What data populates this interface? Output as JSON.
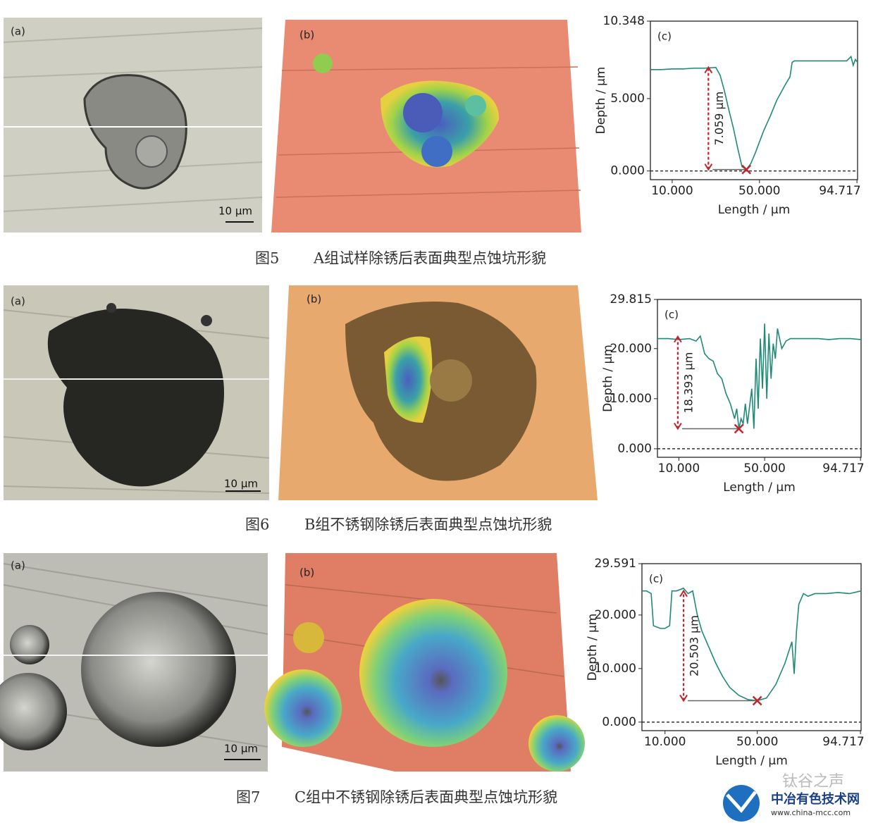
{
  "figures": [
    {
      "caption_number": "图5",
      "caption": "A组试样除锈后表面典型点蚀坑形貌",
      "panel_a": "(a)",
      "panel_b": "(b)",
      "scale_bar": "10 μm"
    },
    {
      "caption_number": "图6",
      "caption": "B组不锈钢除锈后表面典型点蚀坑形貌",
      "panel_a": "(a)",
      "panel_b": "(b)",
      "scale_bar": "10 μm"
    },
    {
      "caption_number": "图7",
      "caption": "C组中不锈钢除锈后表面典型点蚀坑形貌",
      "panel_a": "(a)",
      "panel_b": "(b)",
      "scale_bar": "10 μm"
    }
  ],
  "chart_data": [
    {
      "type": "line",
      "panel_label": "(c)",
      "xlabel": "Length / μm",
      "ylabel": "Depth / μm",
      "x": [
        0,
        5,
        10,
        15,
        20,
        25,
        30,
        32,
        34,
        36,
        38,
        40,
        42,
        44,
        46,
        48,
        50,
        52,
        55,
        58,
        62,
        64,
        65,
        66,
        70,
        75,
        80,
        85,
        90,
        92,
        93,
        94,
        95
      ],
      "series": [
        {
          "color": "#1f8a78",
          "values": [
            7.0,
            7.0,
            7.05,
            7.05,
            7.1,
            7.1,
            7.15,
            6.6,
            5.5,
            4.2,
            3.0,
            1.6,
            0.3,
            0.1,
            0.5,
            1.2,
            2.0,
            2.8,
            3.8,
            4.9,
            6.0,
            6.5,
            7.5,
            7.6,
            7.6,
            7.6,
            7.6,
            7.6,
            7.6,
            7.9,
            7.3,
            7.7,
            7.5
          ]
        }
      ],
      "xlim": [
        0,
        95
      ],
      "ylim": [
        -0.6,
        10.348
      ],
      "xticks": [
        {
          "value": 10,
          "label": "10.000"
        },
        {
          "value": 50,
          "label": "50.000"
        },
        {
          "value": 94.717,
          "label": "94.717"
        }
      ],
      "yticks": [
        {
          "value": 0,
          "label": "0.000"
        },
        {
          "value": 5,
          "label": "5.000"
        },
        {
          "value": 10.348,
          "label": "10.348"
        }
      ],
      "annotation": {
        "value": 7.059,
        "label": "7.059 μm"
      }
    },
    {
      "type": "line",
      "panel_label": "(c)",
      "xlabel": "Length / μm",
      "ylabel": "Depth / μm",
      "x": [
        0,
        5,
        10,
        15,
        18,
        20,
        22,
        24,
        26,
        28,
        30,
        32,
        34,
        36,
        37,
        38,
        39,
        40,
        41,
        42,
        44,
        45,
        46,
        47,
        48,
        49,
        50,
        51,
        52,
        53,
        54,
        55,
        56,
        58,
        60,
        62,
        65,
        70,
        75,
        80,
        85,
        90,
        95
      ],
      "series": [
        {
          "color": "#1f8a78",
          "values": [
            22,
            22,
            21.8,
            22,
            21.5,
            22.5,
            19,
            18,
            17.5,
            15,
            14,
            11,
            9,
            6,
            8,
            4,
            6,
            5,
            9,
            5,
            12,
            4,
            18,
            8,
            22,
            12,
            25,
            10,
            23,
            14,
            21,
            18,
            24,
            20,
            21.5,
            22,
            22,
            22,
            22,
            21.8,
            22,
            22,
            21.8
          ]
        }
      ],
      "xlim": [
        0,
        95
      ],
      "ylim": [
        -1.7,
        29.815
      ],
      "xticks": [
        {
          "value": 10,
          "label": "10.000"
        },
        {
          "value": 50,
          "label": "50.000"
        },
        {
          "value": 94.717,
          "label": "94.717"
        }
      ],
      "yticks": [
        {
          "value": 0,
          "label": "0.000"
        },
        {
          "value": 10,
          "label": "10.000"
        },
        {
          "value": 20,
          "label": "20.000"
        },
        {
          "value": 29.815,
          "label": "29.815"
        }
      ],
      "annotation": {
        "value": 18.393,
        "label": "18.393 μm"
      }
    },
    {
      "type": "line",
      "panel_label": "(c)",
      "xlabel": "Length / μm",
      "ylabel": "Depth / μm",
      "x": [
        0,
        2,
        4,
        5,
        8,
        10,
        12,
        13,
        15,
        18,
        20,
        22,
        24,
        26,
        28,
        30,
        32,
        35,
        38,
        42,
        46,
        50,
        54,
        58,
        62,
        65,
        66,
        67,
        68,
        70,
        72,
        75,
        80,
        85,
        90,
        95
      ],
      "series": [
        {
          "color": "#1f8a78",
          "values": [
            24.5,
            24.5,
            24,
            18,
            17.5,
            17.5,
            18,
            24.5,
            24.5,
            25,
            24,
            24.5,
            20,
            17,
            15,
            13,
            11,
            8.5,
            6.5,
            5,
            4.2,
            4,
            4.5,
            7,
            11,
            15,
            9,
            17,
            22,
            24,
            23.5,
            24,
            24,
            24.2,
            24,
            24.5
          ]
        }
      ],
      "xlim": [
        0,
        95
      ],
      "ylim": [
        -1.6,
        29.591
      ],
      "xticks": [
        {
          "value": 10,
          "label": "10.000"
        },
        {
          "value": 50,
          "label": "50.000"
        },
        {
          "value": 94.717,
          "label": "94.717"
        }
      ],
      "yticks": [
        {
          "value": 0,
          "label": "0.000"
        },
        {
          "value": 10,
          "label": "10.000"
        },
        {
          "value": 20,
          "label": "20.000"
        },
        {
          "value": 29.591,
          "label": "29.591"
        }
      ],
      "annotation": {
        "value": 20.503,
        "label": "20.503 μm"
      }
    }
  ],
  "watermark": {
    "name": "钛谷之声",
    "site": "中冶有色技术网",
    "url": "www.china-mcc.com"
  }
}
